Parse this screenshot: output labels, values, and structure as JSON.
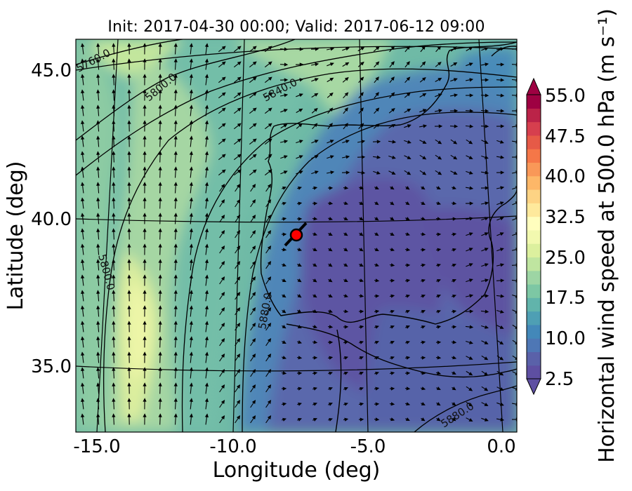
{
  "title": "Init: 2017-04-30 00:00; Valid: 2017-06-12 09:00",
  "axes": {
    "x_label": "Longitude (deg)",
    "y_label": "Latitude (deg)",
    "x_ticks": [
      "-15.0",
      "-10.0",
      "-5.0",
      "0.0"
    ],
    "y_ticks": [
      "45.0",
      "40.0",
      "35.0"
    ],
    "lon_range": [
      -16,
      0
    ],
    "lat_range": [
      33,
      46
    ]
  },
  "colorbar": {
    "label": "Horizontal wind speed at 500.0 hPa (m s⁻¹)",
    "tick_labels": [
      "55.0",
      "47.5",
      "40.0",
      "32.5",
      "25.0",
      "17.5",
      "10.0",
      "2.5"
    ],
    "range": [
      2.5,
      55.0
    ],
    "colors": [
      "#5e4fa2",
      "#5a61a9",
      "#4e77b5",
      "#4388b9",
      "#4e9fb4",
      "#61b4ab",
      "#7dc7a4",
      "#9dd5a4",
      "#bfe5a0",
      "#dcf09e",
      "#f2f9af",
      "#fffebe",
      "#fee99c",
      "#fdd384",
      "#fdb768",
      "#f99858",
      "#f57748",
      "#e65a47",
      "#d63f4e",
      "#bb2348",
      "#9e0142"
    ]
  },
  "contours": {
    "labels": [
      "5760.0",
      "5800.0",
      "5840.0",
      "5800.0",
      "5880.0",
      "5880.0"
    ]
  },
  "marker": {
    "lon": -7.6,
    "lat": 39.3,
    "color": "#ff0000"
  },
  "chart_data": {
    "type": "heatmap",
    "title": "Init: 2017-04-30 00:00; Valid: 2017-06-12 09:00",
    "xlabel": "Longitude (deg)",
    "ylabel": "Latitude (deg)",
    "xlim": [
      -16,
      0
    ],
    "ylim": [
      33,
      46
    ],
    "colorbar_range": [
      2.5,
      55.0
    ],
    "variable": "Horizontal wind speed at 500.0 hPa (m s⁻¹)",
    "contour_levels": [
      5760,
      5800,
      5840,
      5880
    ]
  }
}
